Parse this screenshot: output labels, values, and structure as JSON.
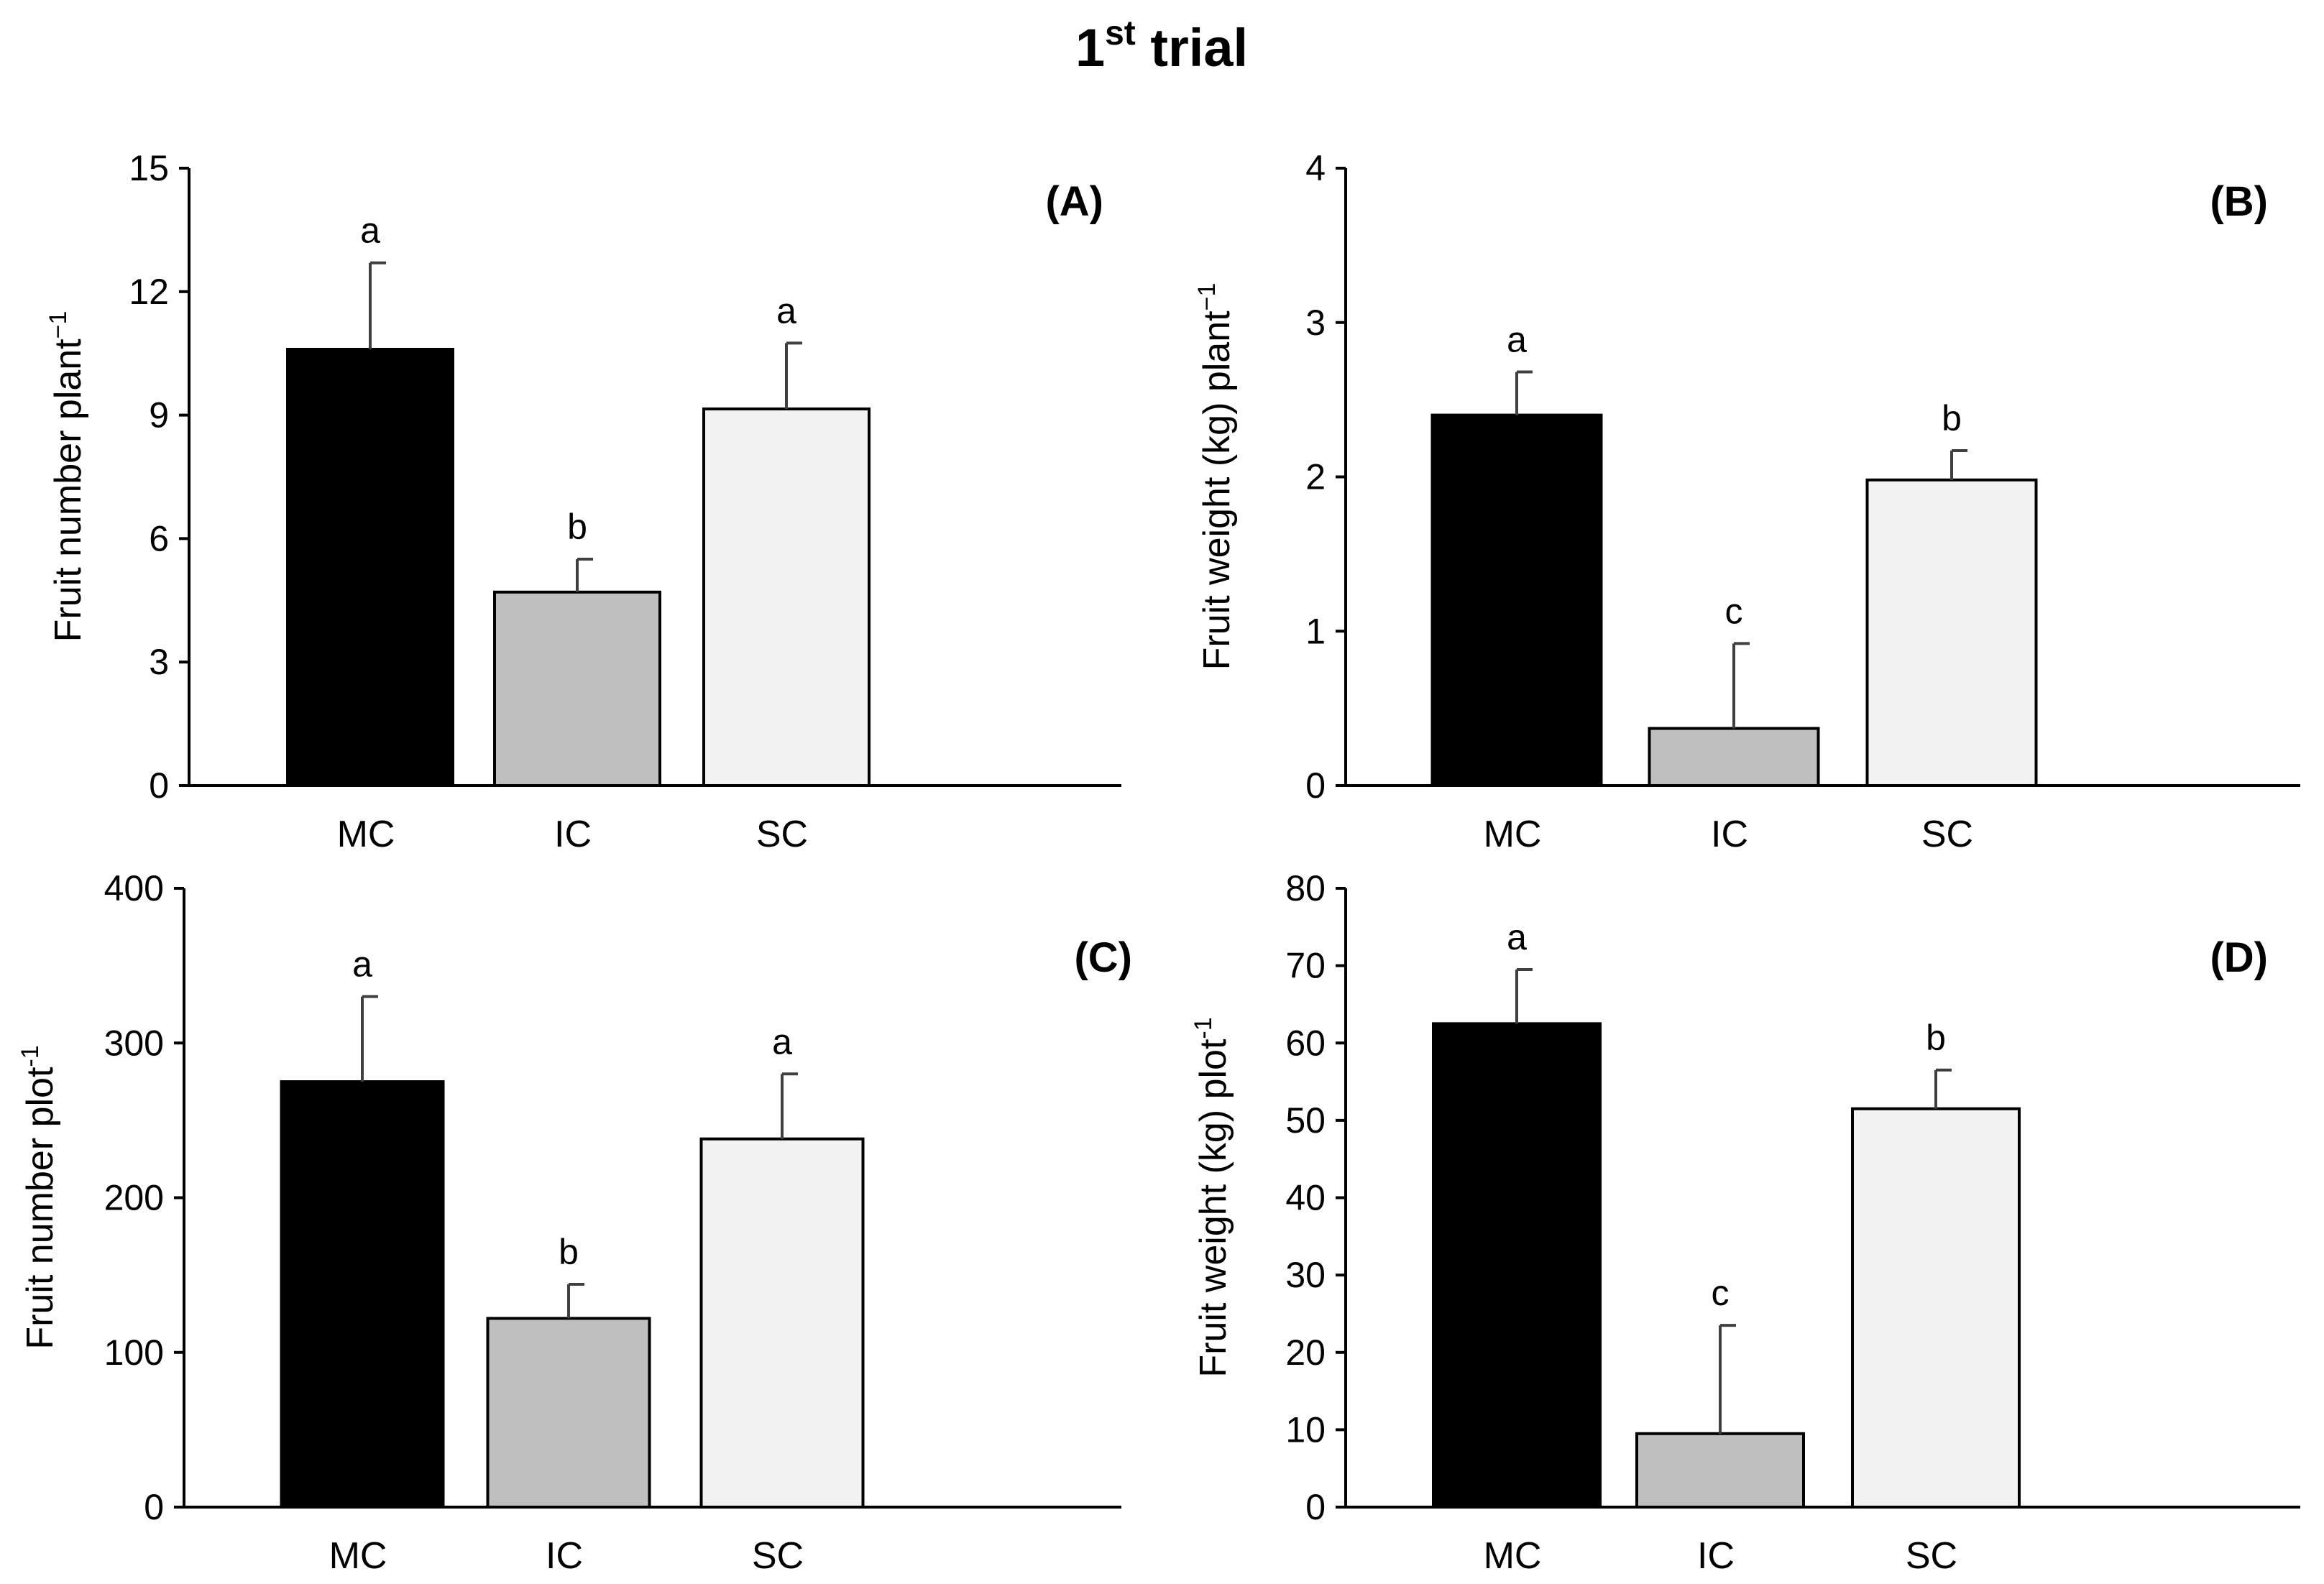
{
  "figure": {
    "title_main": "1",
    "title_sup": "st",
    "title_rest": " trial",
    "colors": {
      "MC": "#000000",
      "IC": "#bfbfbf",
      "SC": "#f2f2f2",
      "axis": "#000000",
      "error": "#404040"
    }
  },
  "chart_data": [
    {
      "type": "bar",
      "panel": "(A)",
      "categories": [
        "MC",
        "IC",
        "SC"
      ],
      "values": [
        10.6,
        4.7,
        9.15
      ],
      "errors": [
        2.1,
        0.8,
        1.6
      ],
      "letters": [
        "a",
        "b",
        "a"
      ],
      "ylabel": "Fruit number plant",
      "ylabel_sup": "−1",
      "ylim": [
        0,
        15
      ],
      "yticks": [
        0,
        3,
        6,
        9,
        12,
        15
      ],
      "ytick_labels": [
        "0",
        "3",
        "6",
        "9",
        "12",
        "15"
      ]
    },
    {
      "type": "bar",
      "panel": "(B)",
      "categories": [
        "MC",
        "IC",
        "SC"
      ],
      "values": [
        2.4,
        0.37,
        1.98
      ],
      "errors": [
        0.28,
        0.55,
        0.19
      ],
      "letters": [
        "a",
        "c",
        "b"
      ],
      "ylabel": "Fruit weight (kg) plant",
      "ylabel_sup": "−1",
      "ylim": [
        0,
        4
      ],
      "yticks": [
        0,
        1,
        2,
        3,
        4
      ],
      "ytick_labels": [
        "0",
        "1",
        "2",
        "3",
        "4"
      ]
    },
    {
      "type": "bar",
      "panel": "(C)",
      "categories": [
        "MC",
        "IC",
        "SC"
      ],
      "values": [
        275,
        122,
        238
      ],
      "errors": [
        55,
        22,
        42
      ],
      "letters": [
        "a",
        "b",
        "a"
      ],
      "ylabel": "Fruit number plot",
      "ylabel_sup": "-1",
      "ylim": [
        0,
        400
      ],
      "yticks": [
        0,
        100,
        200,
        300,
        400
      ],
      "ytick_labels": [
        "0",
        "100",
        "200",
        "300",
        "400"
      ]
    },
    {
      "type": "bar",
      "panel": "(D)",
      "categories": [
        "MC",
        "IC",
        "SC"
      ],
      "values": [
        62.5,
        9.5,
        51.5
      ],
      "errors": [
        7.0,
        14.0,
        5.0
      ],
      "letters": [
        "a",
        "c",
        "b"
      ],
      "ylabel": "Fruit weight (kg) plot",
      "ylabel_sup": "-1",
      "ylim": [
        0,
        80
      ],
      "yticks": [
        0,
        10,
        20,
        30,
        40,
        50,
        60,
        70,
        80
      ],
      "ytick_labels": [
        "0",
        "10",
        "20",
        "30",
        "40",
        "50",
        "60",
        "70",
        "80"
      ]
    }
  ]
}
